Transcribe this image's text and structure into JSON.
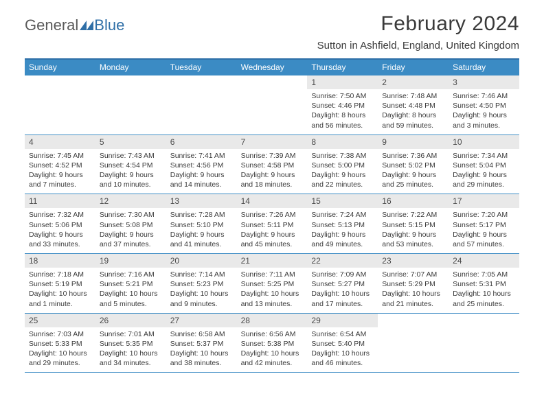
{
  "brand": {
    "part1": "General",
    "part2": "Blue"
  },
  "title": "February 2024",
  "location": "Sutton in Ashfield, England, United Kingdom",
  "colors": {
    "header_bg": "#3b8bc4",
    "border": "#2f6fa7",
    "daynum_bg": "#e9e9e9",
    "text": "#3a3a3a"
  },
  "dow": [
    "Sunday",
    "Monday",
    "Tuesday",
    "Wednesday",
    "Thursday",
    "Friday",
    "Saturday"
  ],
  "weeks": [
    [
      null,
      null,
      null,
      null,
      {
        "n": "1",
        "sr": "Sunrise: 7:50 AM",
        "ss": "Sunset: 4:46 PM",
        "dl": "Daylight: 8 hours and 56 minutes."
      },
      {
        "n": "2",
        "sr": "Sunrise: 7:48 AM",
        "ss": "Sunset: 4:48 PM",
        "dl": "Daylight: 8 hours and 59 minutes."
      },
      {
        "n": "3",
        "sr": "Sunrise: 7:46 AM",
        "ss": "Sunset: 4:50 PM",
        "dl": "Daylight: 9 hours and 3 minutes."
      }
    ],
    [
      {
        "n": "4",
        "sr": "Sunrise: 7:45 AM",
        "ss": "Sunset: 4:52 PM",
        "dl": "Daylight: 9 hours and 7 minutes."
      },
      {
        "n": "5",
        "sr": "Sunrise: 7:43 AM",
        "ss": "Sunset: 4:54 PM",
        "dl": "Daylight: 9 hours and 10 minutes."
      },
      {
        "n": "6",
        "sr": "Sunrise: 7:41 AM",
        "ss": "Sunset: 4:56 PM",
        "dl": "Daylight: 9 hours and 14 minutes."
      },
      {
        "n": "7",
        "sr": "Sunrise: 7:39 AM",
        "ss": "Sunset: 4:58 PM",
        "dl": "Daylight: 9 hours and 18 minutes."
      },
      {
        "n": "8",
        "sr": "Sunrise: 7:38 AM",
        "ss": "Sunset: 5:00 PM",
        "dl": "Daylight: 9 hours and 22 minutes."
      },
      {
        "n": "9",
        "sr": "Sunrise: 7:36 AM",
        "ss": "Sunset: 5:02 PM",
        "dl": "Daylight: 9 hours and 25 minutes."
      },
      {
        "n": "10",
        "sr": "Sunrise: 7:34 AM",
        "ss": "Sunset: 5:04 PM",
        "dl": "Daylight: 9 hours and 29 minutes."
      }
    ],
    [
      {
        "n": "11",
        "sr": "Sunrise: 7:32 AM",
        "ss": "Sunset: 5:06 PM",
        "dl": "Daylight: 9 hours and 33 minutes."
      },
      {
        "n": "12",
        "sr": "Sunrise: 7:30 AM",
        "ss": "Sunset: 5:08 PM",
        "dl": "Daylight: 9 hours and 37 minutes."
      },
      {
        "n": "13",
        "sr": "Sunrise: 7:28 AM",
        "ss": "Sunset: 5:10 PM",
        "dl": "Daylight: 9 hours and 41 minutes."
      },
      {
        "n": "14",
        "sr": "Sunrise: 7:26 AM",
        "ss": "Sunset: 5:11 PM",
        "dl": "Daylight: 9 hours and 45 minutes."
      },
      {
        "n": "15",
        "sr": "Sunrise: 7:24 AM",
        "ss": "Sunset: 5:13 PM",
        "dl": "Daylight: 9 hours and 49 minutes."
      },
      {
        "n": "16",
        "sr": "Sunrise: 7:22 AM",
        "ss": "Sunset: 5:15 PM",
        "dl": "Daylight: 9 hours and 53 minutes."
      },
      {
        "n": "17",
        "sr": "Sunrise: 7:20 AM",
        "ss": "Sunset: 5:17 PM",
        "dl": "Daylight: 9 hours and 57 minutes."
      }
    ],
    [
      {
        "n": "18",
        "sr": "Sunrise: 7:18 AM",
        "ss": "Sunset: 5:19 PM",
        "dl": "Daylight: 10 hours and 1 minute."
      },
      {
        "n": "19",
        "sr": "Sunrise: 7:16 AM",
        "ss": "Sunset: 5:21 PM",
        "dl": "Daylight: 10 hours and 5 minutes."
      },
      {
        "n": "20",
        "sr": "Sunrise: 7:14 AM",
        "ss": "Sunset: 5:23 PM",
        "dl": "Daylight: 10 hours and 9 minutes."
      },
      {
        "n": "21",
        "sr": "Sunrise: 7:11 AM",
        "ss": "Sunset: 5:25 PM",
        "dl": "Daylight: 10 hours and 13 minutes."
      },
      {
        "n": "22",
        "sr": "Sunrise: 7:09 AM",
        "ss": "Sunset: 5:27 PM",
        "dl": "Daylight: 10 hours and 17 minutes."
      },
      {
        "n": "23",
        "sr": "Sunrise: 7:07 AM",
        "ss": "Sunset: 5:29 PM",
        "dl": "Daylight: 10 hours and 21 minutes."
      },
      {
        "n": "24",
        "sr": "Sunrise: 7:05 AM",
        "ss": "Sunset: 5:31 PM",
        "dl": "Daylight: 10 hours and 25 minutes."
      }
    ],
    [
      {
        "n": "25",
        "sr": "Sunrise: 7:03 AM",
        "ss": "Sunset: 5:33 PM",
        "dl": "Daylight: 10 hours and 29 minutes."
      },
      {
        "n": "26",
        "sr": "Sunrise: 7:01 AM",
        "ss": "Sunset: 5:35 PM",
        "dl": "Daylight: 10 hours and 34 minutes."
      },
      {
        "n": "27",
        "sr": "Sunrise: 6:58 AM",
        "ss": "Sunset: 5:37 PM",
        "dl": "Daylight: 10 hours and 38 minutes."
      },
      {
        "n": "28",
        "sr": "Sunrise: 6:56 AM",
        "ss": "Sunset: 5:38 PM",
        "dl": "Daylight: 10 hours and 42 minutes."
      },
      {
        "n": "29",
        "sr": "Sunrise: 6:54 AM",
        "ss": "Sunset: 5:40 PM",
        "dl": "Daylight: 10 hours and 46 minutes."
      },
      null,
      null
    ]
  ]
}
